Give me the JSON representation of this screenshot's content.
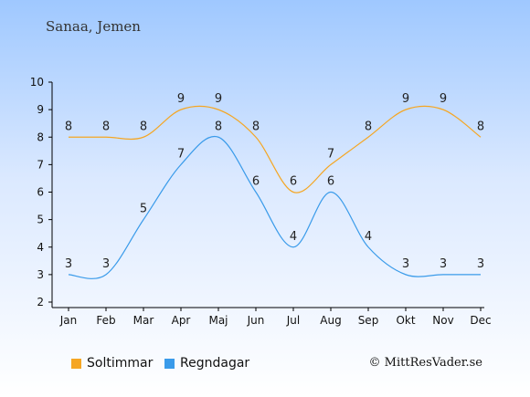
{
  "location_title": "Sanaa, Jemen",
  "copyright": "© MittResVader.se",
  "colors": {
    "sun": "#f5a623",
    "rain": "#3a9bea"
  },
  "chart_data": {
    "type": "line",
    "categories": [
      "Jan",
      "Feb",
      "Mar",
      "Apr",
      "Maj",
      "Jun",
      "Jul",
      "Aug",
      "Sep",
      "Okt",
      "Nov",
      "Dec"
    ],
    "ylim": [
      2,
      10
    ],
    "yticks": [
      2,
      3,
      4,
      5,
      6,
      7,
      8,
      9,
      10
    ],
    "series": [
      {
        "name": "Soltimmar",
        "values": [
          8,
          8,
          8,
          9,
          9,
          8,
          6,
          7,
          8,
          9,
          9,
          8
        ]
      },
      {
        "name": "Regndagar",
        "values": [
          3,
          3,
          5,
          7,
          8,
          6,
          4,
          6,
          4,
          3,
          3,
          3
        ]
      }
    ]
  }
}
